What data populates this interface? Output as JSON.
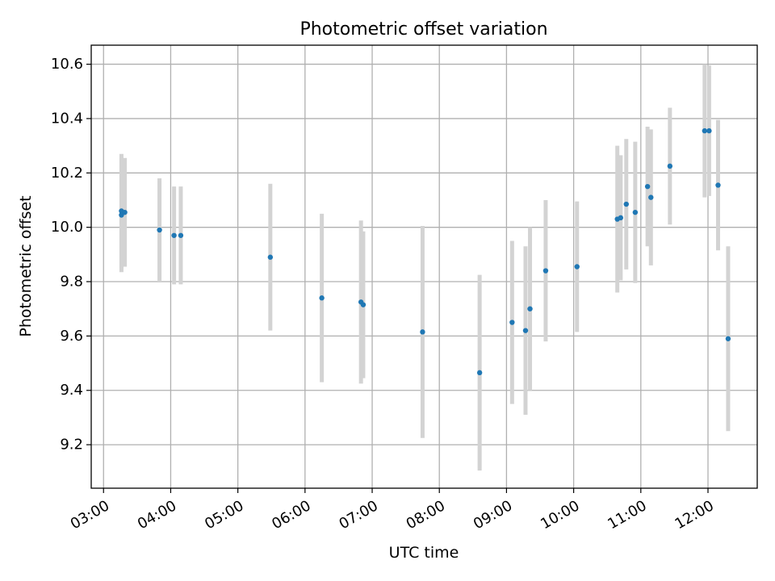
{
  "chart_data": {
    "type": "scatter",
    "title": "Photometric offset variation",
    "xlabel": "UTC time",
    "ylabel": "Photometric offset",
    "x_ticks": [
      "03:00",
      "04:00",
      "05:00",
      "06:00",
      "07:00",
      "08:00",
      "09:00",
      "10:00",
      "11:00",
      "12:00"
    ],
    "y_ticks": [
      "9.2",
      "9.4",
      "9.6",
      "9.8",
      "10.0",
      "10.2",
      "10.4",
      "10.6"
    ],
    "xlim": [
      "02:49",
      "12:44"
    ],
    "ylim": [
      9.04,
      10.67
    ],
    "grid": true,
    "colors": {
      "marker": "#1f77b4",
      "errorbar": "#d3d3d3",
      "grid": "#b0b0b0"
    },
    "points": [
      {
        "x": "03:16",
        "y": 10.06,
        "err": 0.21
      },
      {
        "x": "03:16",
        "y": 10.045,
        "err": 0.21
      },
      {
        "x": "03:19",
        "y": 10.055,
        "err": 0.2
      },
      {
        "x": "03:50",
        "y": 9.99,
        "err": 0.19
      },
      {
        "x": "04:03",
        "y": 9.97,
        "err": 0.18
      },
      {
        "x": "04:09",
        "y": 9.97,
        "err": 0.18
      },
      {
        "x": "05:29",
        "y": 9.89,
        "err": 0.27
      },
      {
        "x": "06:15",
        "y": 9.74,
        "err": 0.31
      },
      {
        "x": "06:50",
        "y": 9.725,
        "err": 0.3
      },
      {
        "x": "06:52",
        "y": 9.715,
        "err": 0.27
      },
      {
        "x": "07:45",
        "y": 9.615,
        "err": 0.39
      },
      {
        "x": "08:36",
        "y": 9.465,
        "err": 0.36
      },
      {
        "x": "09:05",
        "y": 9.65,
        "err": 0.3
      },
      {
        "x": "09:17",
        "y": 9.62,
        "err": 0.31
      },
      {
        "x": "09:21",
        "y": 9.7,
        "err": 0.3
      },
      {
        "x": "09:35",
        "y": 9.84,
        "err": 0.26
      },
      {
        "x": "10:03",
        "y": 9.855,
        "err": 0.24
      },
      {
        "x": "10:39",
        "y": 10.03,
        "err": 0.27
      },
      {
        "x": "10:42",
        "y": 10.035,
        "err": 0.23
      },
      {
        "x": "10:47",
        "y": 10.085,
        "err": 0.24
      },
      {
        "x": "10:55",
        "y": 10.055,
        "err": 0.26
      },
      {
        "x": "11:06",
        "y": 10.15,
        "err": 0.22
      },
      {
        "x": "11:09",
        "y": 10.11,
        "err": 0.25
      },
      {
        "x": "11:26",
        "y": 10.225,
        "err": 0.215
      },
      {
        "x": "11:57",
        "y": 10.355,
        "err": 0.245
      },
      {
        "x": "12:01",
        "y": 10.355,
        "err": 0.24
      },
      {
        "x": "12:09",
        "y": 10.155,
        "err": 0.24
      },
      {
        "x": "12:18",
        "y": 9.59,
        "err": 0.34
      }
    ]
  }
}
